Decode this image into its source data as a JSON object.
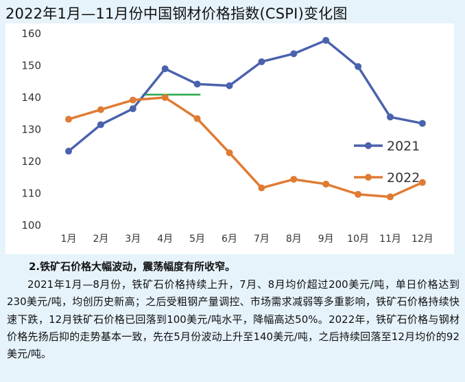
{
  "page": {
    "title": "2022年1月—11月份中国钢材价格指数(CSPI)变化图",
    "section_heading": "2.铁矿石价格大幅波动，震荡幅度有所收窄。",
    "paragraph": "2021年1月—8月份，铁矿石价格持续上升，7月、8月均价超过200美元/吨，单日价格达到230美元/吨，均创历史新高；之后受粗钢产量调控、市场需求减弱等多重影响，铁矿石价格持续快速下跌，12月铁矿石价格已回落到100美元/吨水平，降幅高达50%。2022年，铁矿石价格与钢材价格先扬后抑的走势基本一致，先在5月份波动上升至140美元/吨，之后持续回落至12月均价的92美元/吨。"
  },
  "chart_data": {
    "type": "line",
    "title": "2022年1月—11月份中国钢材价格指数(CSPI)变化图",
    "xlabel": "",
    "ylabel": "",
    "categories": [
      "1月",
      "2月",
      "3月",
      "4月",
      "5月",
      "6月",
      "7月",
      "8月",
      "9月",
      "10月",
      "11月",
      "12月"
    ],
    "ylim": [
      100,
      160
    ],
    "yticks": [
      100,
      110,
      120,
      130,
      140,
      150,
      160
    ],
    "grid": false,
    "legend_position": "right",
    "series": [
      {
        "name": "2021",
        "color": "#4a62ad",
        "values": [
          123,
          131.3,
          136.3,
          148.8,
          144,
          143.5,
          151,
          153.5,
          157.7,
          149.5,
          133.7,
          131.7
        ]
      },
      {
        "name": "2022",
        "color": "#e07b33",
        "values": [
          133,
          136,
          139,
          139.8,
          133.2,
          122.5,
          111.5,
          114.2,
          112.7,
          109.5,
          108.7,
          113.2
        ]
      }
    ],
    "reference_line": {
      "color": "#2aa84a",
      "y": 140.7,
      "x_from": 3.3,
      "x_to": 5.1
    }
  }
}
